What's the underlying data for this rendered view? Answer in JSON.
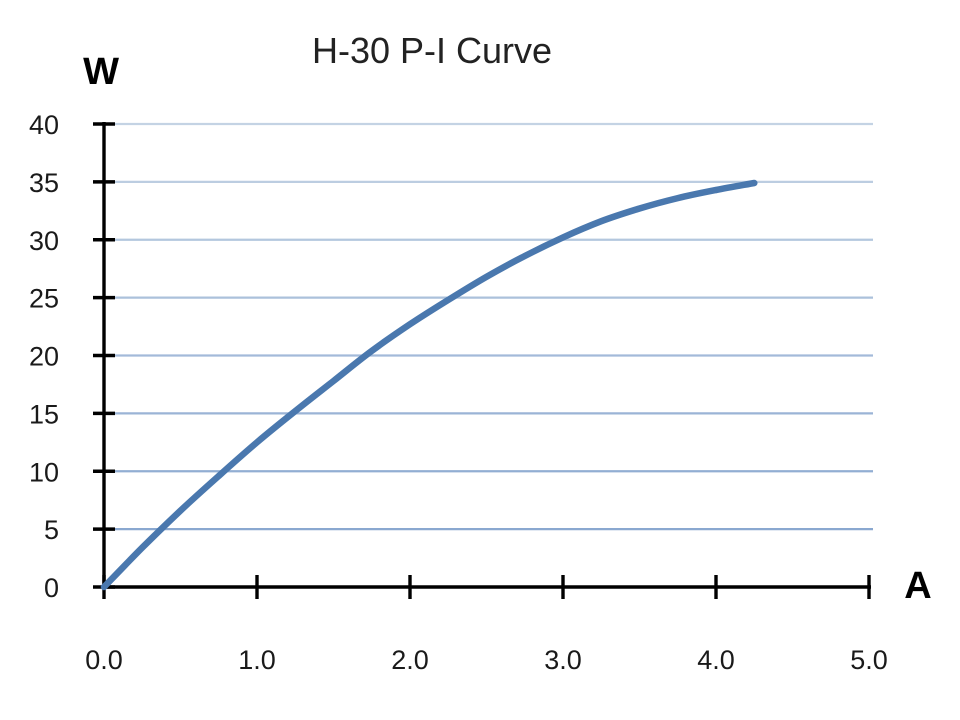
{
  "chart_data": {
    "type": "line",
    "title": "H-30 P-I Curve",
    "ylabel": "W",
    "xlabel": "A",
    "xlim": [
      0,
      5
    ],
    "ylim": [
      0,
      40
    ],
    "x_ticks": [
      "0.0",
      "1.0",
      "2.0",
      "3.0",
      "4.0",
      "5.0"
    ],
    "y_ticks": [
      "0",
      "5",
      "10",
      "15",
      "20",
      "25",
      "30",
      "35",
      "40"
    ],
    "grid": "horizontal",
    "colors": {
      "line": "#4a78ae",
      "grid_top": "#c4d3e4",
      "grid_bottom": "#8aa8d0",
      "axis": "#000000"
    },
    "series": [
      {
        "x": [
          0.0,
          0.25,
          0.5,
          0.75,
          1.0,
          1.25,
          1.5,
          1.75,
          2.0,
          2.25,
          2.5,
          2.75,
          3.0,
          3.25,
          3.5,
          3.75,
          4.0,
          4.25
        ],
        "y": [
          0.0,
          3.4,
          6.6,
          9.6,
          12.5,
          15.2,
          17.8,
          20.4,
          22.7,
          24.8,
          26.8,
          28.6,
          30.2,
          31.6,
          32.7,
          33.6,
          34.3,
          34.9
        ]
      }
    ]
  }
}
